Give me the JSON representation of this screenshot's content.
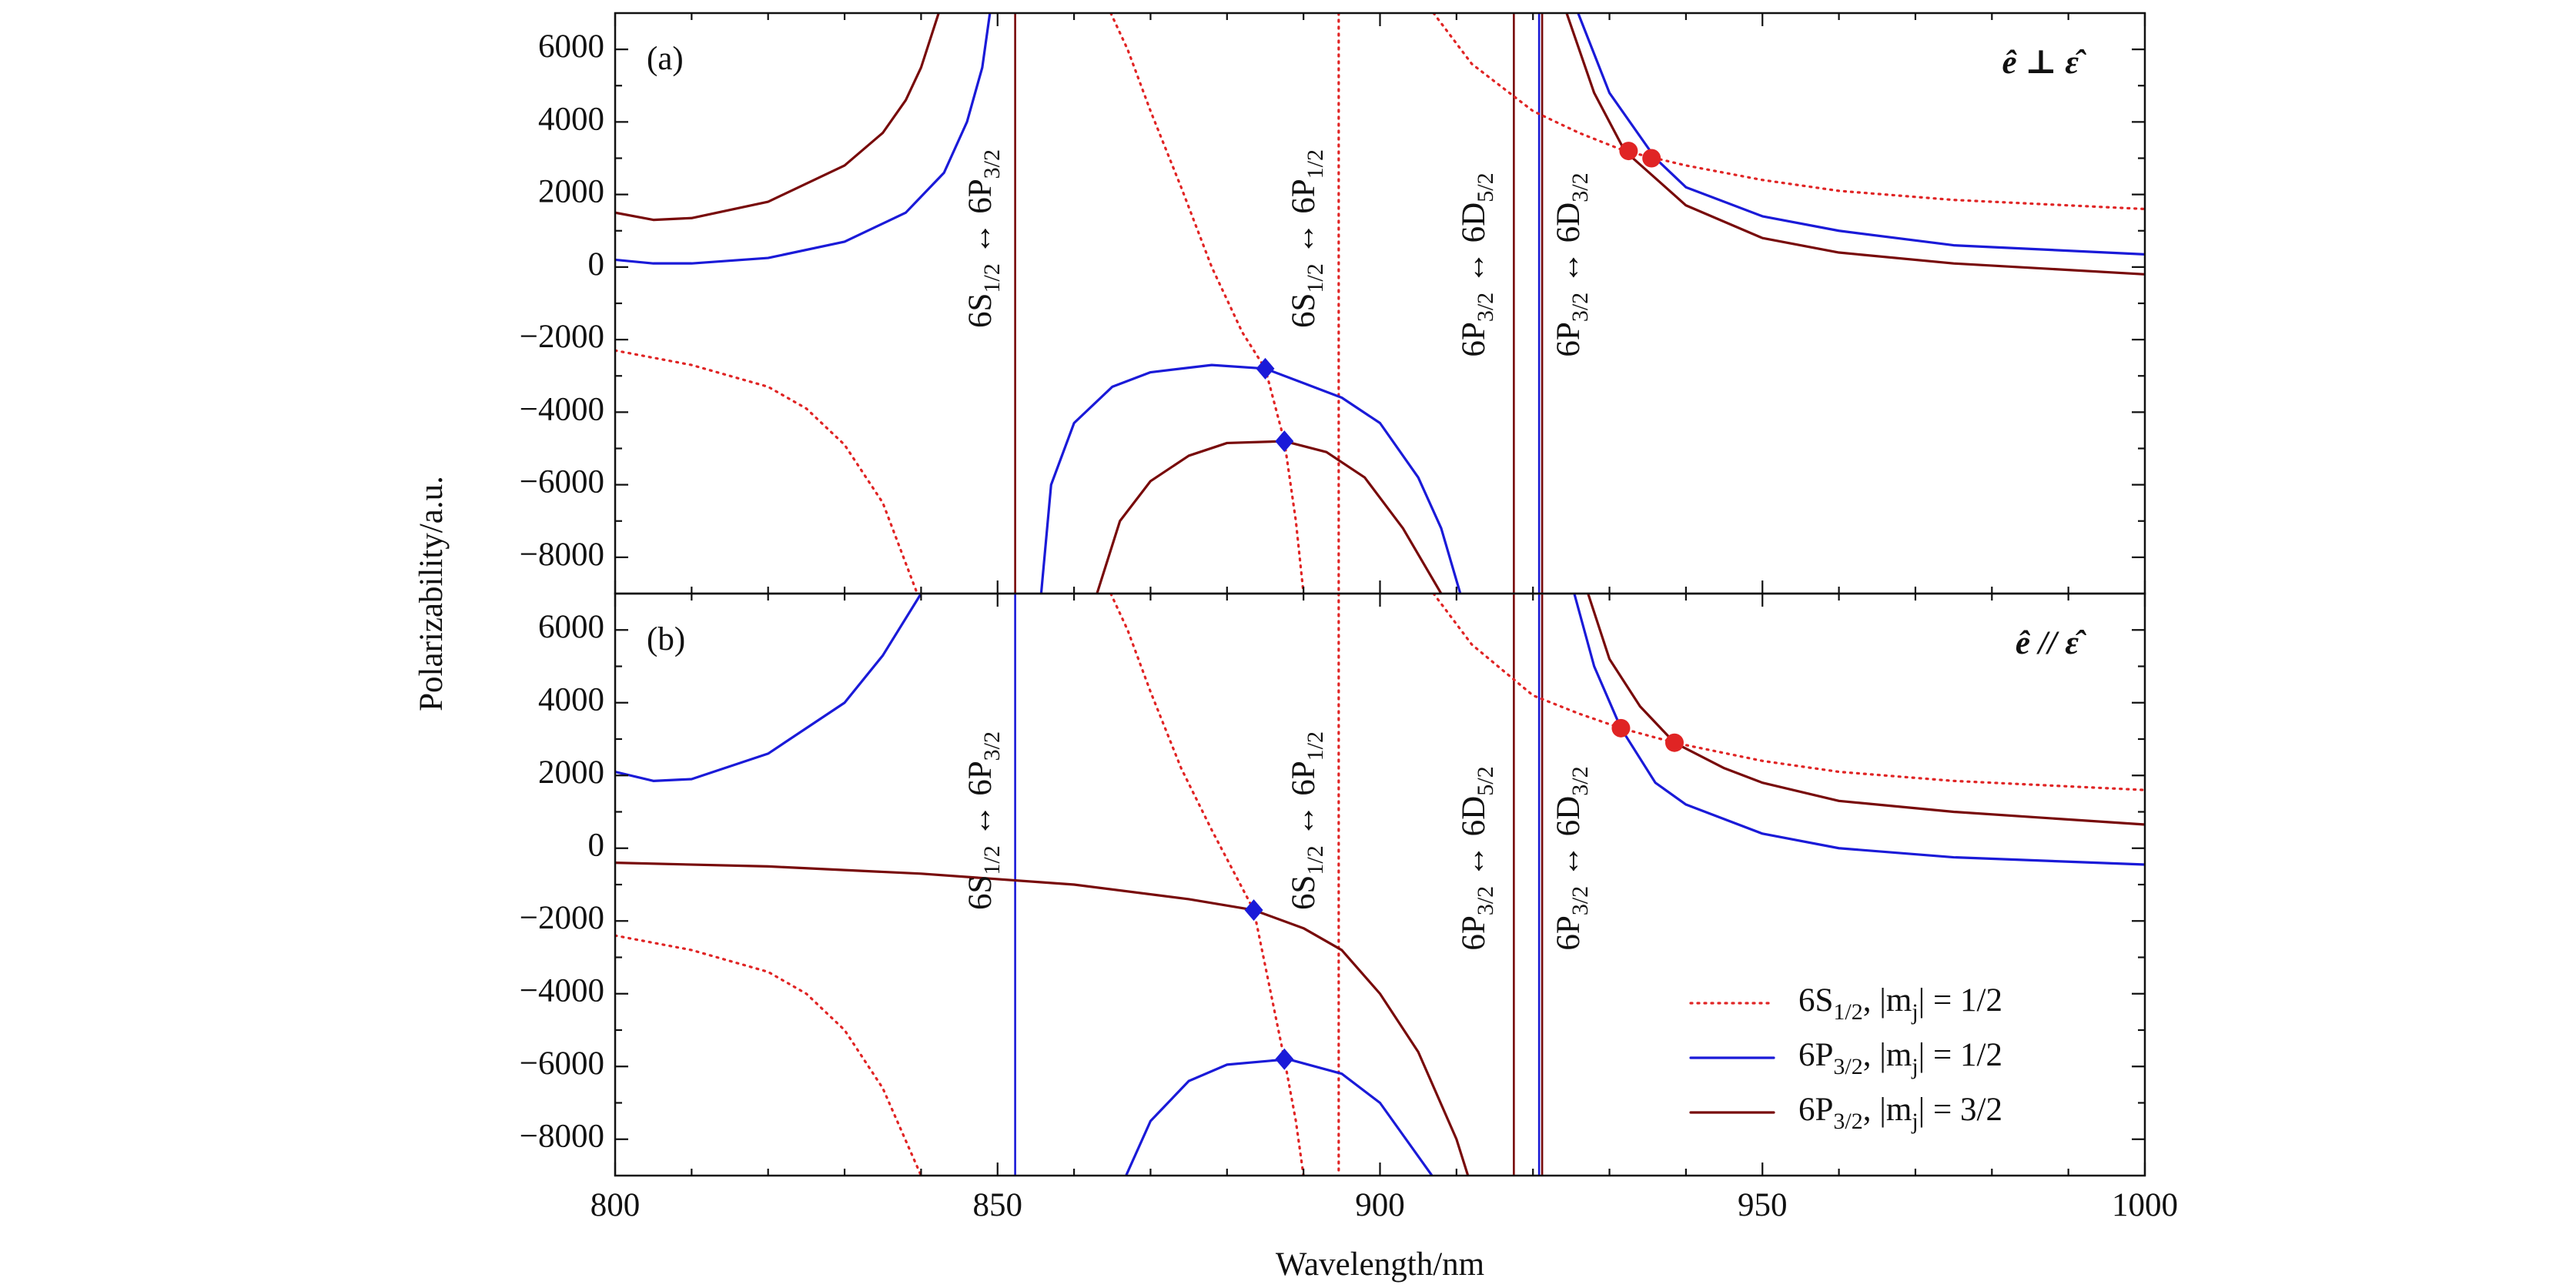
{
  "chart_data": [
    {
      "type": "line",
      "panel_label": "(a)",
      "annotation": "ê ⊥ ε̂",
      "ylabel": "Polarizability/a.u.",
      "xlim": [
        800,
        1000
      ],
      "ylim": [
        -9000,
        7000
      ],
      "xtick_labels": false,
      "xticks": [
        800,
        850,
        900,
        950,
        1000
      ],
      "xminorticks": [
        810,
        820,
        830,
        840,
        860,
        870,
        880,
        890,
        910,
        920,
        930,
        940,
        960,
        970,
        980,
        990
      ],
      "yticks": [
        {
          "value": -8000,
          "label": "−8000"
        },
        {
          "value": -6000,
          "label": "−6000"
        },
        {
          "value": -4000,
          "label": "−4000"
        },
        {
          "value": -2000,
          "label": "−2000"
        },
        0,
        2000,
        4000,
        6000
      ],
      "yminorticks": [
        -7000,
        -5000,
        -3000,
        -1000,
        1000,
        3000,
        5000
      ],
      "series": [
        {
          "color": "#e02424",
          "style": "dotted",
          "x": [
            800,
            810,
            820,
            825,
            830,
            835,
            839.5,
            852.3,
            864.8,
            867,
            870,
            874,
            878,
            882,
            885,
            887.5,
            889,
            890,
            894.6,
            907,
            912,
            920,
            926,
            932,
            940,
            950,
            960,
            975,
            1000
          ],
          "values": [
            -2300,
            -2700,
            -3300,
            -3900,
            -4900,
            -6500,
            -9000,
            null,
            7000,
            6000,
            4300,
            2200,
            0,
            -1800,
            -2800,
            -4800,
            -7000,
            -9000,
            null,
            7000,
            5600,
            4300,
            3700,
            3200,
            2800,
            2400,
            2100,
            1850,
            1600
          ]
        },
        {
          "color": "#1a1ad8",
          "style": "solid",
          "x": [
            800,
            805,
            810,
            820,
            830,
            838,
            843,
            846,
            848,
            849,
            852.3,
            855.7,
            857,
            860,
            865,
            870,
            878,
            885,
            890,
            895,
            900,
            905,
            908,
            910.5,
            921,
            925.9,
            930,
            936,
            940,
            950,
            960,
            975,
            1000
          ],
          "values": [
            200,
            100,
            100,
            250,
            700,
            1500,
            2600,
            4000,
            5500,
            7000,
            null,
            -9000,
            -6000,
            -4300,
            -3300,
            -2900,
            -2700,
            -2800,
            -3200,
            -3600,
            -4300,
            -5800,
            -7200,
            -9000,
            null,
            7000,
            4800,
            3000,
            2200,
            1400,
            1000,
            600,
            350
          ]
        },
        {
          "color": "#780a0a",
          "style": "solid",
          "x": [
            800,
            805,
            810,
            820,
            830,
            835,
            838,
            840,
            842.3,
            852.3,
            863,
            866,
            870,
            875,
            880,
            887.5,
            893,
            898,
            903,
            908,
            921,
            924.4,
            928,
            932,
            940,
            950,
            960,
            975,
            1000
          ],
          "values": [
            1500,
            1300,
            1350,
            1800,
            2800,
            3700,
            4600,
            5500,
            7000,
            null,
            -9000,
            -7000,
            -5900,
            -5200,
            -4850,
            -4800,
            -5100,
            -5800,
            -7200,
            -9000,
            null,
            7000,
            4800,
            3200,
            1700,
            800,
            400,
            100,
            -200
          ]
        }
      ],
      "vlines": [
        {
          "x": 852.3,
          "color": "#780a0a",
          "style": "solid"
        },
        {
          "x": 894.6,
          "color": "#e02424",
          "style": "dotted"
        },
        {
          "x": 917.5,
          "color": "#780a0a",
          "style": "solid"
        },
        {
          "x": 920.8,
          "color": "#1a1ad8",
          "style": "solid"
        },
        {
          "x": 921.2,
          "color": "#780a0a",
          "style": "solid"
        }
      ],
      "transitions": [
        [
          {
            "t": "6S"
          },
          {
            "sub": "1/2"
          },
          {
            "t": " ↔ 6P"
          },
          {
            "sub": "3/2"
          }
        ],
        [
          {
            "t": "6S"
          },
          {
            "sub": "1/2"
          },
          {
            "t": " ↔ 6P"
          },
          {
            "sub": "1/2"
          }
        ],
        [
          {
            "t": "6P"
          },
          {
            "sub": "3/2"
          },
          {
            "t": " ↔ 6D"
          },
          {
            "sub": "5/2"
          }
        ],
        [
          {
            "t": "6P"
          },
          {
            "sub": "3/2"
          },
          {
            "t": " ↔ 6D"
          },
          {
            "sub": "3/2"
          }
        ]
      ],
      "markers": [
        {
          "x": 932.5,
          "y": 3200,
          "color": "#e02424",
          "shape": "circle"
        },
        {
          "x": 935.5,
          "y": 3000,
          "color": "#e02424",
          "shape": "circle"
        },
        {
          "x": 885,
          "y": -2800,
          "color": "#1a1ad8",
          "shape": "diamond"
        },
        {
          "x": 887.5,
          "y": -4800,
          "color": "#1a1ad8",
          "shape": "diamond"
        }
      ]
    },
    {
      "type": "line",
      "panel_label": "(b)",
      "annotation": "ê // ε̂",
      "xlabel": "Wavelength/nm",
      "xlim": [
        800,
        1000
      ],
      "ylim": [
        -9000,
        7000
      ],
      "xtick_labels": true,
      "xticks": [
        800,
        850,
        900,
        950,
        1000
      ],
      "xminorticks": [
        810,
        820,
        830,
        840,
        860,
        870,
        880,
        890,
        910,
        920,
        930,
        940,
        960,
        970,
        980,
        990
      ],
      "yticks": [
        {
          "value": -8000,
          "label": "−8000"
        },
        {
          "value": -6000,
          "label": "−6000"
        },
        {
          "value": -4000,
          "label": "−4000"
        },
        {
          "value": -2000,
          "label": "−2000"
        },
        0,
        2000,
        4000,
        6000
      ],
      "yminorticks": [
        -7000,
        -5000,
        -3000,
        -1000,
        1000,
        3000,
        5000
      ],
      "legend": "lower right",
      "series": [
        {
          "name": [
            {
              "t": "6S"
            },
            {
              "sub": "1/2"
            },
            {
              "t": ", |m"
            },
            {
              "sub": "j"
            },
            {
              "t": "| = 1/2"
            }
          ],
          "color": "#e02424",
          "style": "dotted",
          "x": [
            800,
            810,
            820,
            825,
            830,
            835,
            840,
            852.3,
            864.8,
            867,
            870,
            874,
            878,
            881,
            883.5,
            887.5,
            889,
            890,
            894.6,
            907,
            912,
            920,
            926,
            931.5,
            938.5,
            950,
            960,
            975,
            1000
          ],
          "values": [
            -2400,
            -2800,
            -3400,
            -4000,
            -5000,
            -6600,
            -9000,
            null,
            7000,
            6000,
            4300,
            2200,
            500,
            -700,
            -1700,
            -5800,
            -7500,
            -9000,
            null,
            7000,
            5600,
            4200,
            3700,
            3300,
            2900,
            2400,
            2100,
            1850,
            1600
          ]
        },
        {
          "name": [
            {
              "t": "6P"
            },
            {
              "sub": "3/2"
            },
            {
              "t": ", |m"
            },
            {
              "sub": "j"
            },
            {
              "t": "| = 1/2"
            }
          ],
          "color": "#1a1ad8",
          "style": "solid",
          "x": [
            800,
            805,
            810,
            820,
            830,
            835,
            840,
            852.3,
            866.8,
            870,
            875,
            880,
            888,
            895,
            900,
            906.8,
            921,
            925.4,
            928,
            931.5,
            936,
            940,
            950,
            960,
            975,
            1000
          ],
          "values": [
            2100,
            1850,
            1900,
            2600,
            4000,
            5300,
            7000,
            null,
            -9000,
            -7500,
            -6400,
            -5950,
            -5800,
            -6200,
            -7000,
            -9000,
            null,
            7000,
            5000,
            3300,
            1800,
            1200,
            400,
            0,
            -250,
            -450
          ]
        },
        {
          "name": [
            {
              "t": "6P"
            },
            {
              "sub": "3/2"
            },
            {
              "t": ", |m"
            },
            {
              "sub": "j"
            },
            {
              "t": "| = 3/2"
            }
          ],
          "color": "#780a0a",
          "style": "solid",
          "x": [
            800,
            820,
            840,
            860,
            875,
            883.5,
            890,
            895,
            900,
            905,
            910,
            911.5,
            921,
            927.2,
            930,
            934,
            938.5,
            945,
            950,
            960,
            975,
            1000
          ],
          "values": [
            -400,
            -500,
            -700,
            -1000,
            -1400,
            -1700,
            -2200,
            -2800,
            -4000,
            -5600,
            -8000,
            -9000,
            null,
            7000,
            5200,
            3900,
            2900,
            2200,
            1800,
            1300,
            1000,
            650
          ]
        }
      ],
      "vlines": [
        {
          "x": 852.3,
          "color": "#1a1ad8",
          "style": "solid"
        },
        {
          "x": 894.6,
          "color": "#e02424",
          "style": "dotted"
        },
        {
          "x": 917.5,
          "color": "#780a0a",
          "style": "solid"
        },
        {
          "x": 920.8,
          "color": "#1a1ad8",
          "style": "solid"
        },
        {
          "x": 921.2,
          "color": "#780a0a",
          "style": "solid"
        }
      ],
      "transitions": [
        [
          {
            "t": "6S"
          },
          {
            "sub": "1/2"
          },
          {
            "t": " ↔ 6P"
          },
          {
            "sub": "3/2"
          }
        ],
        [
          {
            "t": "6S"
          },
          {
            "sub": "1/2"
          },
          {
            "t": " ↔ 6P"
          },
          {
            "sub": "1/2"
          }
        ],
        [
          {
            "t": "6P"
          },
          {
            "sub": "3/2"
          },
          {
            "t": " ↔ 6D"
          },
          {
            "sub": "5/2"
          }
        ],
        [
          {
            "t": "6P"
          },
          {
            "sub": "3/2"
          },
          {
            "t": " ↔ 6D"
          },
          {
            "sub": "3/2"
          }
        ]
      ],
      "markers": [
        {
          "x": 931.5,
          "y": 3300,
          "color": "#e02424",
          "shape": "circle"
        },
        {
          "x": 938.5,
          "y": 2900,
          "color": "#e02424",
          "shape": "circle"
        },
        {
          "x": 883.5,
          "y": -1700,
          "color": "#1a1ad8",
          "shape": "diamond"
        },
        {
          "x": 887.5,
          "y": -5800,
          "color": "#1a1ad8",
          "shape": "diamond"
        }
      ]
    }
  ]
}
